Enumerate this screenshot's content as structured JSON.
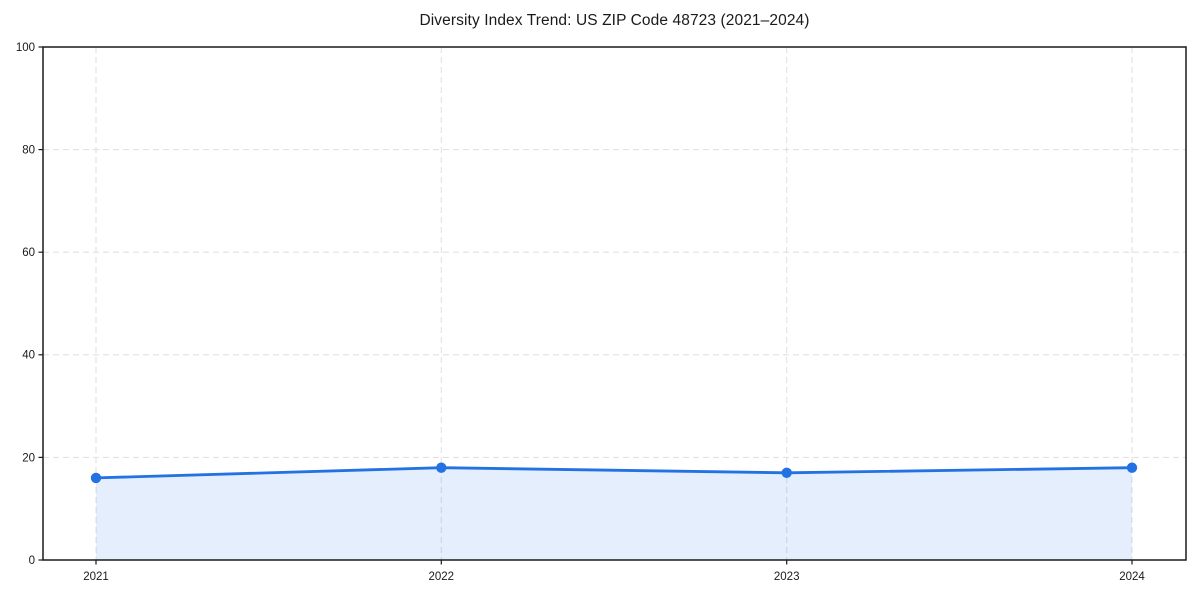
{
  "chart_data": {
    "type": "area",
    "title": "Diversity Index Trend: US ZIP Code 48723 (2021–2024)",
    "categories": [
      "2021",
      "2022",
      "2023",
      "2024"
    ],
    "x": [
      2021,
      2022,
      2023,
      2024
    ],
    "series": [
      {
        "name": "Diversity Index",
        "values": [
          16,
          18,
          17,
          18
        ]
      }
    ],
    "xlabel": "",
    "ylabel": "",
    "ylim": [
      0,
      100
    ],
    "yticks": [
      0,
      20,
      40,
      60,
      80,
      100
    ],
    "grid": true,
    "grid_style": "dashed",
    "legend": "none",
    "colors": {
      "line": "#2272e3",
      "marker": "#2272e3",
      "fill": "rgba(34, 114, 227, 0.12)",
      "gridline": "#e1e1e1",
      "spine": "#1a1a1a",
      "text": "#1a1a1a",
      "background": "#ffffff"
    }
  }
}
